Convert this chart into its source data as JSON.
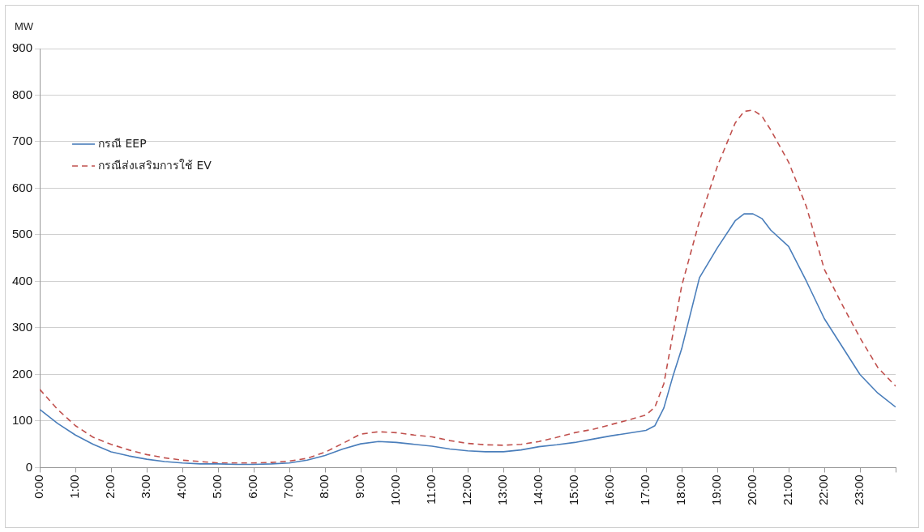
{
  "chart_data": {
    "type": "line",
    "ylabel": "MW",
    "x": [
      0,
      0.5,
      1,
      1.5,
      2,
      2.5,
      3,
      3.5,
      4,
      4.5,
      5,
      5.5,
      6,
      6.5,
      7,
      7.5,
      8,
      8.5,
      9,
      9.5,
      10,
      10.5,
      11,
      11.5,
      12,
      12.5,
      13,
      13.5,
      14,
      14.5,
      15,
      15.5,
      16,
      16.5,
      17,
      17.25,
      17.5,
      17.75,
      18,
      18.5,
      19,
      19.5,
      19.75,
      20,
      20.25,
      20.5,
      21,
      21.5,
      22,
      22.5,
      23,
      23.5,
      24
    ],
    "series": [
      {
        "name": "กรณี EEP",
        "color": "#4a7ebb",
        "line_style": "solid",
        "values": [
          125,
          95,
          70,
          50,
          34,
          25,
          18,
          13,
          10,
          8,
          8,
          7,
          7,
          8,
          10,
          16,
          26,
          40,
          51,
          56,
          54,
          50,
          46,
          40,
          36,
          34,
          34,
          38,
          45,
          49,
          54,
          61,
          68,
          74,
          80,
          90,
          128,
          195,
          255,
          408,
          472,
          530,
          545,
          545,
          535,
          510,
          475,
          400,
          320,
          260,
          200,
          160,
          130
        ]
      },
      {
        "name": "กรณีส่งเสริมการใช้ EV",
        "color": "#c0504d",
        "line_style": "dashed",
        "values": [
          168,
          125,
          90,
          65,
          50,
          38,
          28,
          21,
          16,
          13,
          10,
          10,
          10,
          11,
          14,
          20,
          33,
          52,
          72,
          77,
          75,
          70,
          66,
          58,
          52,
          49,
          48,
          50,
          56,
          65,
          75,
          82,
          92,
          102,
          113,
          130,
          180,
          285,
          390,
          530,
          647,
          740,
          765,
          768,
          755,
          725,
          656,
          560,
          426,
          350,
          279,
          215,
          175
        ]
      }
    ],
    "xlim": [
      0,
      24
    ],
    "xticks": [
      {
        "value": 0,
        "label": "0:00"
      },
      {
        "value": 1,
        "label": "1:00"
      },
      {
        "value": 2,
        "label": "2:00"
      },
      {
        "value": 3,
        "label": "3:00"
      },
      {
        "value": 4,
        "label": "4:00"
      },
      {
        "value": 5,
        "label": "5:00"
      },
      {
        "value": 6,
        "label": "6:00"
      },
      {
        "value": 7,
        "label": "7:00"
      },
      {
        "value": 8,
        "label": "8:00"
      },
      {
        "value": 9,
        "label": "9:00"
      },
      {
        "value": 10,
        "label": "10:00"
      },
      {
        "value": 11,
        "label": "11:00"
      },
      {
        "value": 12,
        "label": "12:00"
      },
      {
        "value": 13,
        "label": "13:00"
      },
      {
        "value": 14,
        "label": "14:00"
      },
      {
        "value": 15,
        "label": "15:00"
      },
      {
        "value": 16,
        "label": "16:00"
      },
      {
        "value": 17,
        "label": "17:00"
      },
      {
        "value": 18,
        "label": "18:00"
      },
      {
        "value": 19,
        "label": "19:00"
      },
      {
        "value": 20,
        "label": "20:00"
      },
      {
        "value": 21,
        "label": "21:00"
      },
      {
        "value": 22,
        "label": "22:00"
      },
      {
        "value": 23,
        "label": "23:00"
      },
      {
        "value": 24,
        "label": null
      }
    ],
    "ylim": [
      0,
      900
    ],
    "yticks": [
      0,
      100,
      200,
      300,
      400,
      500,
      600,
      700,
      800,
      900
    ],
    "grid": "y",
    "legend": "top left",
    "marker": "none"
  }
}
